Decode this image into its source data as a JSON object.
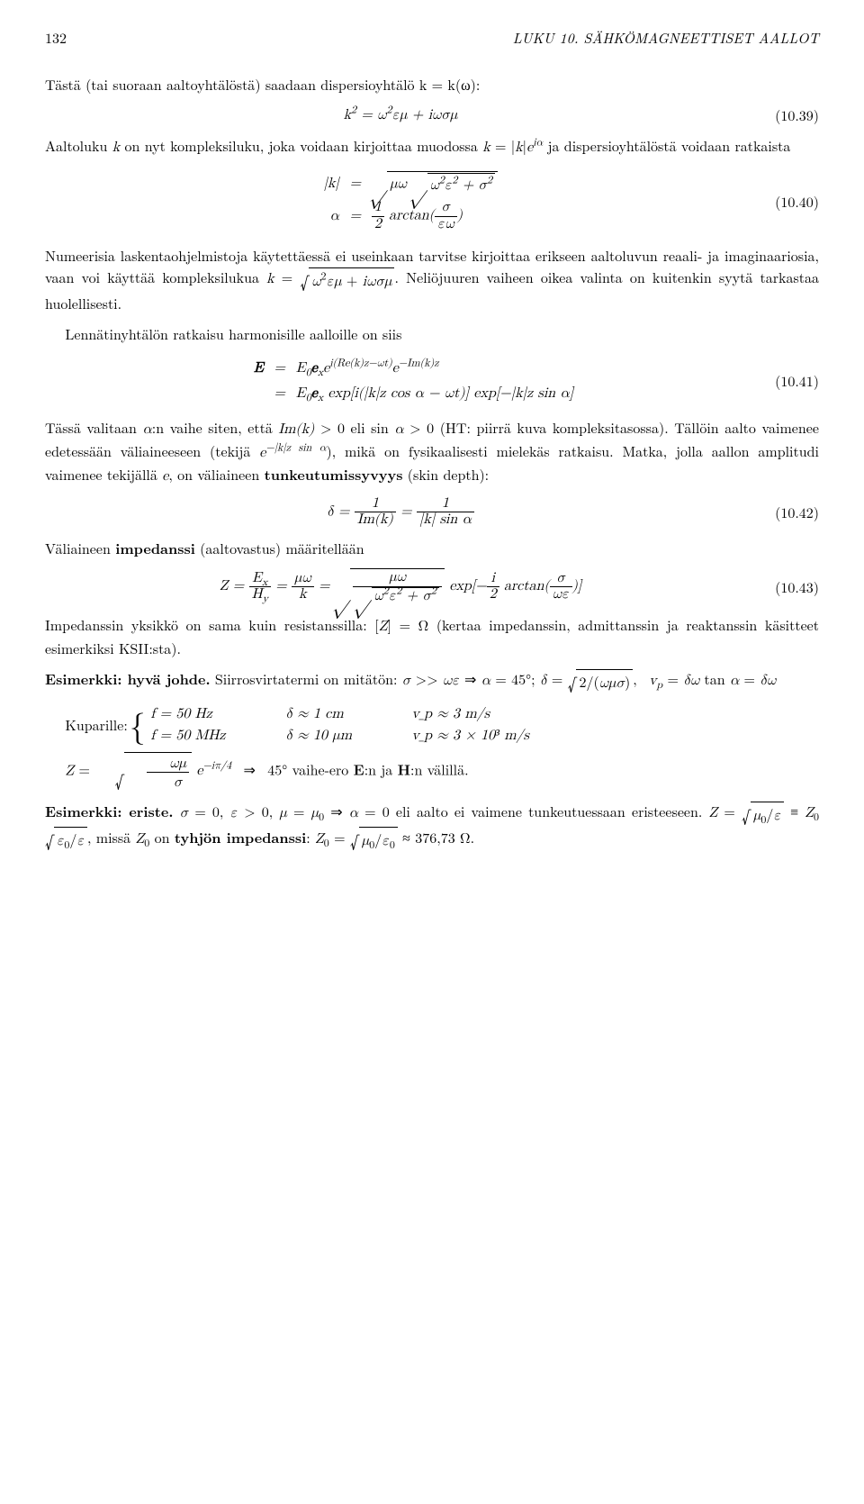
{
  "header": {
    "page_number": "132",
    "chapter": "LUKU 10. SÄHKÖMAGNEETTISET AALLOT"
  },
  "p1": "Tästä (tai suoraan aaltoyhtälöstä) saadaan dispersioyhtälö k = k(ω):",
  "eq39": {
    "body": "k² = ω²εμ + iωσμ",
    "num": "(10.39)"
  },
  "p2": "Aaltoluku k on nyt kompleksiluku, joka voidaan kirjoittaa muodossa k = |k|e^{iα} ja dispersioyhtälöstä voidaan ratkaista",
  "eq40": {
    "line1": {
      "lhs": "|k|",
      "eq": "=",
      "rhs": "√(μω √(ω²ε² + σ²))"
    },
    "line2": {
      "lhs": "α",
      "eq": "=",
      "rhs": "½ arctan(σ / εω)"
    },
    "num": "(10.40)"
  },
  "p3": "Numeerisia laskentaohjelmistoja käytettäessä ei useinkaan tarvitse kirjoittaa erikseen aaltoluvun reaali- ja imaginaariosia, vaan voi käyttää kompleksilukua k = √(ω²εμ + iωσμ). Neliöjuuren vaiheen oikea valinta on kuitenkin syytä tarkastaa huolellisesti.",
  "p4": "Lennätinyhtälön ratkaisu harmonisille aalloille on siis",
  "eq41": {
    "line1": {
      "lhs": "E",
      "eq": "=",
      "rhs": "E₀eₓ e^{i(Re(k)z − ωt)} e^{−Im(k)z}"
    },
    "line2": {
      "lhs": "",
      "eq": "=",
      "rhs": "E₀eₓ exp[i(|k|z cos α − ωt)] exp[−|k|z sin α]"
    },
    "num": "(10.41)"
  },
  "p5a": "Tässä valitaan α:n vaihe siten, että Im(k) > 0 eli sin α > 0 (HT: piirrä kuva kompleksitasossa). Tällöin aalto vaimenee edetessään väliaineeseen (tekijä e^{−|k|z sin α}), mikä on fysikaalisesti mielekäs ratkaisu. Matka, jolla aallon amplitudi vaimenee tekijällä e, on väliaineen ",
  "p5b": "tunkeutumissyvyys",
  "p5c": " (skin depth):",
  "eq42": {
    "body": "δ = 1 / Im(k) = 1 / (|k| sin α)",
    "num": "(10.42)"
  },
  "p6a": "Väliaineen ",
  "p6b": "impedanssi",
  "p6c": " (aaltovastus) määritellään",
  "eq43": {
    "body": "Z = Eₓ / H_y = μω / k = √( μω / √(ω²ε² + σ²) ) exp[ −(i/2) arctan(σ / ωε) ]",
    "num": "(10.43)"
  },
  "p7": "Impedanssin yksikkö on sama kuin resistanssilla: [Z] = Ω (kertaa impedanssin, admittanssin ja reaktanssin käsitteet esimerkiksi KSII:sta).",
  "ex1": {
    "title": "Esimerkki: hyvä johde.",
    "body": " Siirrosvirtatermi on mitätön: σ >> ωε ⇒ α = 45°; δ = √(2/(ωμσ)),  v_p = δω tan α = δω"
  },
  "table": {
    "lead": "Kuparille:",
    "rows": [
      {
        "c1": "f = 50 Hz",
        "c2": "δ ≈ 1 cm",
        "c3": "v_p ≈ 3 m/s"
      },
      {
        "c1": "f = 50 MHz",
        "c2": "δ ≈ 10 μm",
        "c3": "v_p ≈ 3 × 10³ m/s"
      }
    ]
  },
  "zline": "Z = √(ωμ/σ) e^{−iπ/4}  ⇒  45° vaihe-ero E:n ja H:n välillä.",
  "ex2": {
    "title": "Esimerkki: eriste.",
    "body1": " σ = 0, ε > 0, μ = μ₀ ⇒ α = 0 eli aalto ei vaimene tunkeutuessaan eristeeseen. Z = √(μ₀/ε) ≡ Z₀√(ε₀/ε), missä Z₀ on ",
    "body2": "tyhjön impedanssi",
    "body3": ": Z₀ = √(μ₀/ε₀) ≈ 376,73 Ω."
  }
}
